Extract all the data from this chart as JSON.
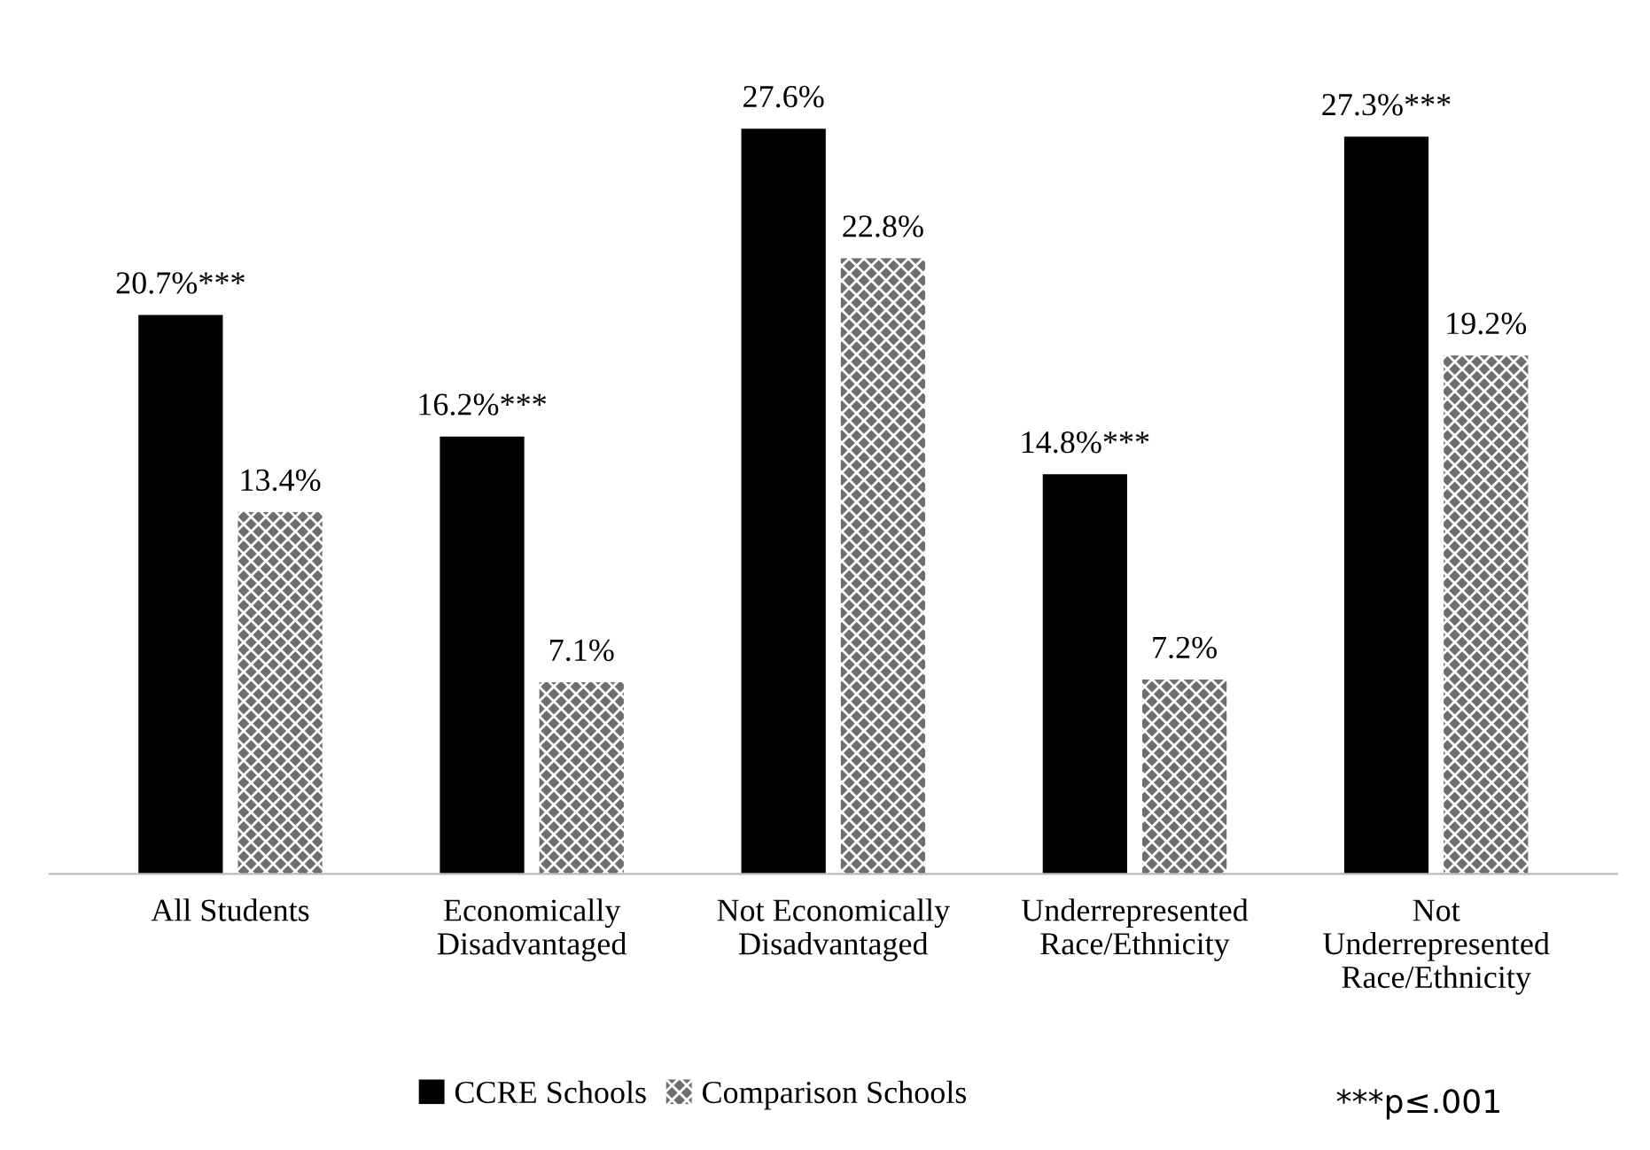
{
  "chart_data": {
    "type": "bar",
    "categories": [
      "All Students",
      "Economically\nDisadvantaged",
      "Not Economically\nDisadvantaged",
      "Underrepresented\nRace/Ethnicity",
      "Not\nUnderrepresented\nRace/Ethnicity"
    ],
    "series": [
      {
        "name": "CCRE Schools",
        "color": "#000000",
        "values": [
          20.7,
          16.2,
          27.6,
          14.8,
          27.3
        ],
        "value_labels": [
          "20.7%***",
          "16.2%***",
          "27.6%",
          "14.8%***",
          "27.3%***"
        ]
      },
      {
        "name": "Comparison Schools",
        "color": "#6e6e6e",
        "values": [
          13.4,
          7.1,
          22.8,
          7.2,
          19.2
        ],
        "value_labels": [
          "13.4%",
          "7.1%",
          "22.8%",
          "7.2%",
          "19.2%"
        ]
      }
    ],
    "legend": "bottom",
    "grid": false,
    "annotations": [
      "***p≤.001"
    ]
  }
}
